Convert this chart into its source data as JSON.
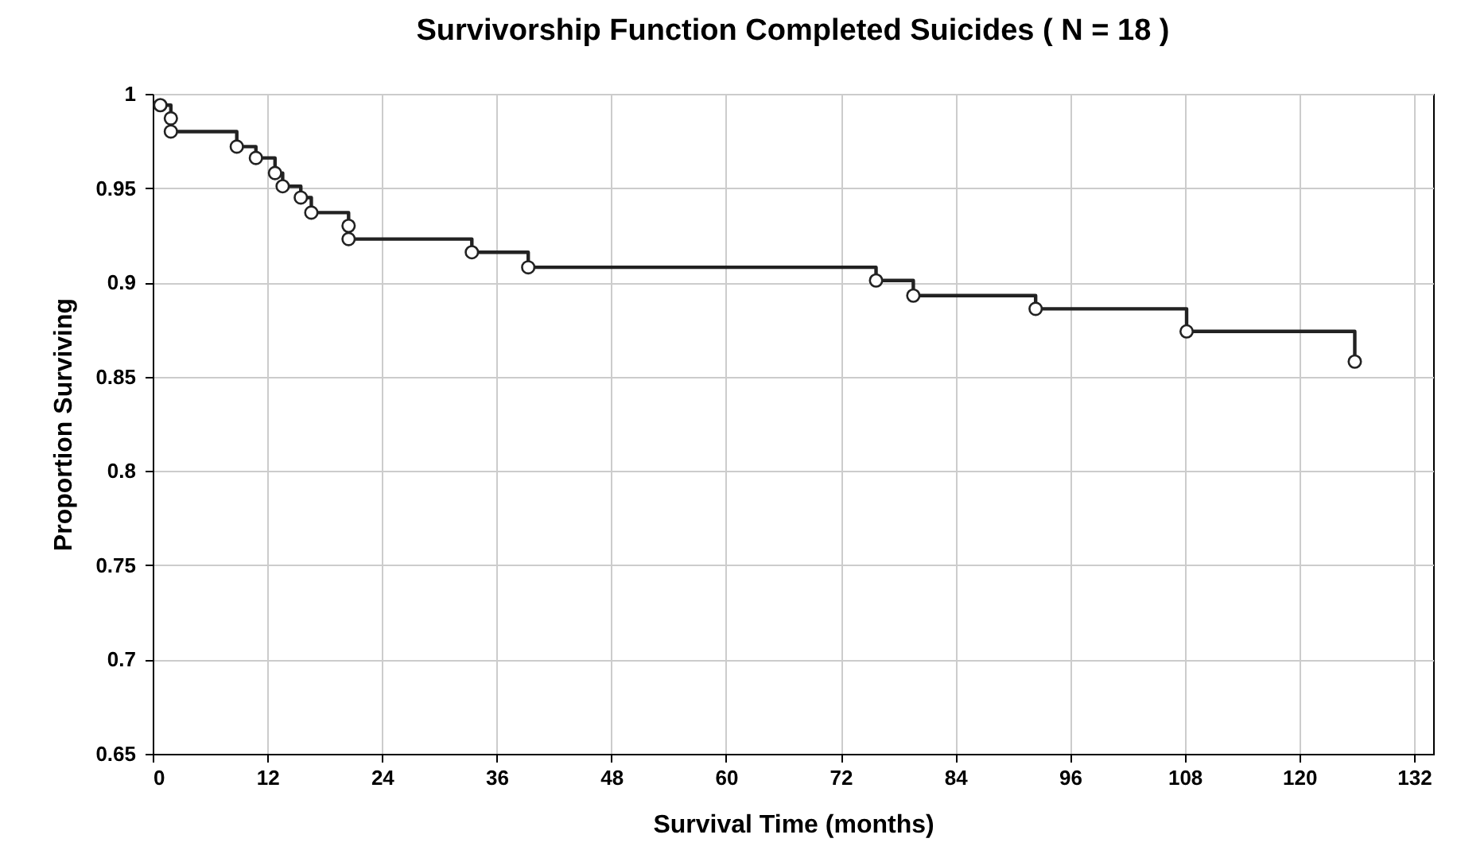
{
  "chart_data": {
    "type": "step",
    "title": "Survivorship Function Completed Suicides  ( N = 18 )",
    "xlabel": "Survival Time (months)",
    "ylabel": "Proportion Surviving",
    "x": [
      0.8,
      1.9,
      1.9,
      8.8,
      10.8,
      12.8,
      13.6,
      15.5,
      16.6,
      20.5,
      20.5,
      33.4,
      39.3,
      75.7,
      79.6,
      92.4,
      108.2,
      125.8
    ],
    "series": [
      {
        "color": "#222222",
        "values": [
          0.994,
          0.987,
          0.98,
          0.972,
          0.966,
          0.958,
          0.951,
          0.945,
          0.937,
          0.93,
          0.923,
          0.916,
          0.908,
          0.901,
          0.893,
          0.886,
          0.874,
          0.858
        ]
      }
    ],
    "xlim": [
      0,
      134
    ],
    "xticks": [
      0,
      12,
      24,
      36,
      48,
      60,
      72,
      84,
      96,
      108,
      120,
      132
    ],
    "ylim": [
      0.65,
      1
    ],
    "yticks": [
      0.65,
      0.7,
      0.75,
      0.8,
      0.85,
      0.9,
      0.95,
      1
    ],
    "grid": true,
    "marker": "circle",
    "line_style": "solid"
  }
}
